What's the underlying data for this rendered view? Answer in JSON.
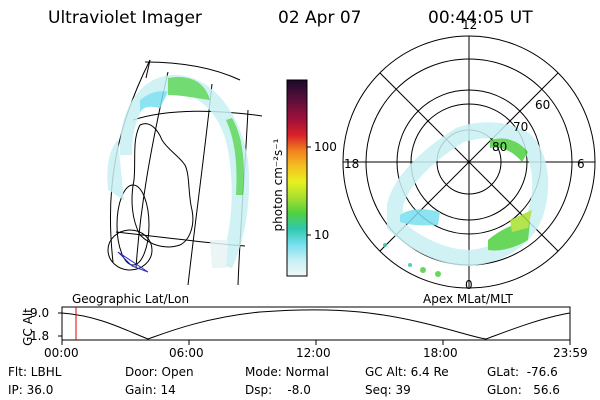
{
  "header": {
    "instrument": "Ultraviolet Imager",
    "date": "02 Apr 07",
    "time": "00:44:05 UT"
  },
  "colorbar": {
    "label": "photon cm⁻²s⁻¹",
    "ticks": [
      "100",
      "10"
    ],
    "colors": [
      "#1b0a2a",
      "#5a0f3a",
      "#a0103b",
      "#d8202a",
      "#f08020",
      "#f4c020",
      "#e8f020",
      "#a8e030",
      "#50d040",
      "#30c8b0",
      "#78e0f0",
      "#c8f0f4",
      "#f0f8f8"
    ]
  },
  "geo_map": {
    "caption": "Geographic Lat/Lon",
    "aurora_color": "#5ad65a"
  },
  "polar_plot": {
    "caption": "Apex MLat/MLT",
    "mlt_labels": {
      "top": "12",
      "left": "18",
      "right": "6",
      "bottom": "0"
    },
    "lat_labels": [
      "60",
      "70",
      "80"
    ]
  },
  "altitude_plot": {
    "ylabel": "GC Alt",
    "yticks": [
      "9.0",
      "1.8"
    ],
    "xticks": [
      "00:00",
      "06:00",
      "12:00",
      "18:00",
      "23:59"
    ],
    "marker_color": "#e00000"
  },
  "info": {
    "flt": "Flt: LBHL",
    "ip": "IP: 36.0",
    "door": "Door: Open",
    "gain": "Gain: 14",
    "mode": "Mode: Normal",
    "dsp": "Dsp:    -8.0",
    "gcalt": "GC Alt: 6.4 Re",
    "seq": "Seq: 39",
    "glat": "GLat:  -76.6",
    "glon": "GLon:   56.6"
  }
}
